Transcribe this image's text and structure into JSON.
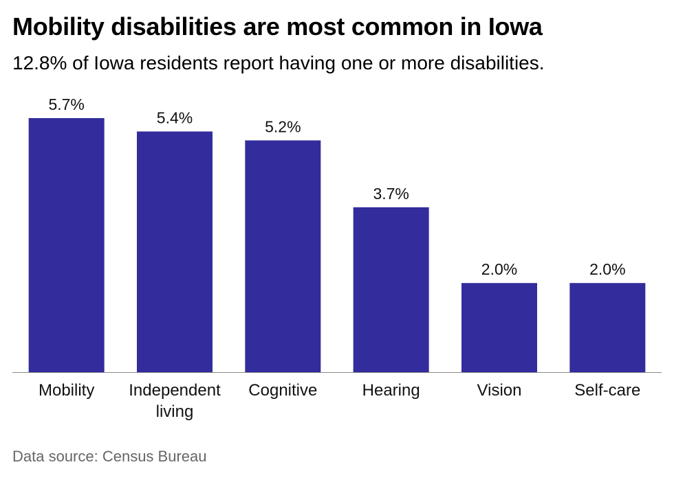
{
  "title": "Mobility disabilities are most common in Iowa",
  "subtitle": "12.8% of Iowa residents report having one or more disabilities.",
  "source": "Data source: Census Bureau",
  "colors": {
    "bar": "#332c9d",
    "baseline": "#888888"
  },
  "chart_data": {
    "type": "bar",
    "categories": [
      "Mobility",
      "Independent living",
      "Cognitive",
      "Hearing",
      "Vision",
      "Self-care"
    ],
    "category_lines": [
      [
        "Mobility"
      ],
      [
        "Independent",
        "living"
      ],
      [
        "Cognitive"
      ],
      [
        "Hearing"
      ],
      [
        "Vision"
      ],
      [
        "Self-care"
      ]
    ],
    "values": [
      5.7,
      5.4,
      5.2,
      3.7,
      2.0,
      2.0
    ],
    "value_labels": [
      "5.7%",
      "5.4%",
      "5.2%",
      "3.7%",
      "2.0%",
      "2.0%"
    ],
    "ylim": [
      0,
      5.7
    ],
    "grid": false,
    "legend": "none",
    "xlabel": "",
    "ylabel": ""
  }
}
